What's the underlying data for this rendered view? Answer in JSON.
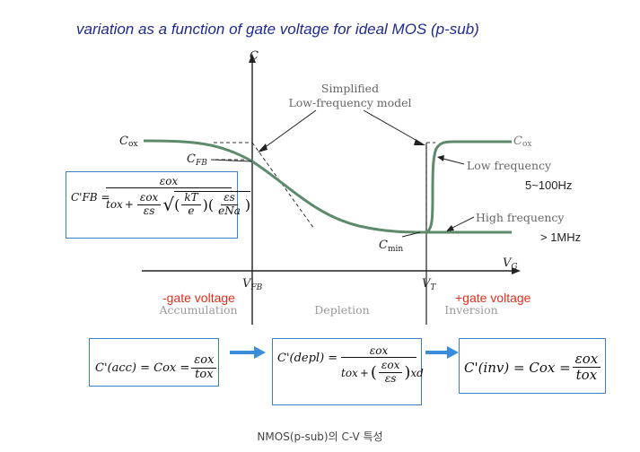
{
  "title": "variation as a function of gate voltage for ideal MOS (p-sub)",
  "diagram": {
    "axis_y": "C",
    "axis_x": "V",
    "axis_x_sub": "G",
    "simplified_line1": "Simplified",
    "simplified_line2": "Low-frequency model",
    "cox_left": "C",
    "cox_left_sub": "ox",
    "cfb": "C",
    "cfb_sub": "FB",
    "cox_right": "C",
    "cox_right_sub": "ox",
    "low_freq": "Low frequency",
    "high_freq": "High frequency",
    "cmin": "C",
    "cmin_sub": "min",
    "vfb": "V",
    "vfb_sub": "FB",
    "vt": "V",
    "vt_sub": "T",
    "region_accumulation": "Accumulation",
    "region_depletion": "Depletion",
    "region_inversion": "Inversion"
  },
  "annotations": {
    "low_freq_range": "5~100Hz",
    "high_freq_range": "> 1MHz",
    "neg_gate": "-gate voltage",
    "pos_gate": "+gate voltage"
  },
  "equations": {
    "cfb_lhs": "C'FB =",
    "acc_lhs": "C'(acc) = Cox =",
    "depl_lhs": "C'(depl) =",
    "inv_lhs": "C'(inv) = Cox =",
    "eps_ox": "εox",
    "t_ox": "tox",
    "eps_s": "εs",
    "kT": "kT",
    "e": "e",
    "eNa": "eNa",
    "xd": "xd"
  },
  "caption": "NMOS(p-sub)의 C-V 특성",
  "colors": {
    "curve": "#5e8a6c",
    "title": "#1f2a8a",
    "box_border": "#3b7fc4",
    "arrow": "#3b8ddb",
    "annotation_red": "#e0301e",
    "region_text": "#9a9a9a"
  }
}
